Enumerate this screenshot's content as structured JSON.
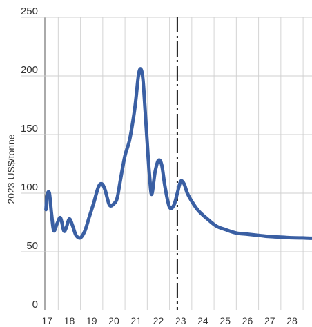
{
  "chart_data": {
    "type": "line",
    "ylabel": "2023 US$/tonne",
    "xlabel": "",
    "ylim": [
      0,
      250
    ],
    "xlim": [
      16.9,
      28.9
    ],
    "y_ticks": [
      "0",
      "50",
      "100",
      "150",
      "200",
      "250"
    ],
    "y_tick_values": [
      0,
      50,
      100,
      150,
      200,
      250
    ],
    "x_ticks": [
      "17",
      "18",
      "19",
      "20",
      "21",
      "22",
      "23",
      "24",
      "25",
      "26",
      "27",
      "28"
    ],
    "x_tick_values": [
      17,
      18,
      19,
      20,
      21,
      22,
      23,
      24,
      25,
      26,
      27,
      28
    ],
    "grid": true,
    "forecast_divider_x": 22.85,
    "series": [
      {
        "color": "#3a5fa3",
        "x": [
          16.95,
          17.0,
          17.1,
          17.2,
          17.3,
          17.45,
          17.6,
          17.75,
          17.85,
          18.0,
          18.15,
          18.3,
          18.5,
          18.7,
          18.9,
          19.1,
          19.3,
          19.45,
          19.6,
          19.8,
          20.0,
          20.15,
          20.3,
          20.5,
          20.7,
          20.9,
          21.0,
          21.1,
          21.2,
          21.3,
          21.4,
          21.5,
          21.6,
          21.7,
          21.85,
          22.0,
          22.15,
          22.3,
          22.5,
          22.7,
          22.85,
          23.0,
          23.15,
          23.3,
          23.5,
          23.8,
          24.2,
          24.6,
          25.0,
          25.5,
          26.0,
          26.5,
          27.0,
          27.5,
          28.0,
          28.5,
          28.9
        ],
        "values": [
          86,
          98,
          100,
          82,
          68,
          74,
          79,
          68,
          70,
          78,
          72,
          64,
          62,
          68,
          80,
          92,
          105,
          108,
          103,
          90,
          91,
          96,
          112,
          132,
          145,
          167,
          182,
          200,
          206,
          198,
          172,
          142,
          115,
          99,
          118,
          128,
          124,
          105,
          88,
          90,
          100,
          110,
          108,
          100,
          93,
          85,
          78,
          72,
          69,
          66,
          65,
          64,
          63,
          62.5,
          62,
          61.8,
          61.5
        ]
      }
    ]
  }
}
